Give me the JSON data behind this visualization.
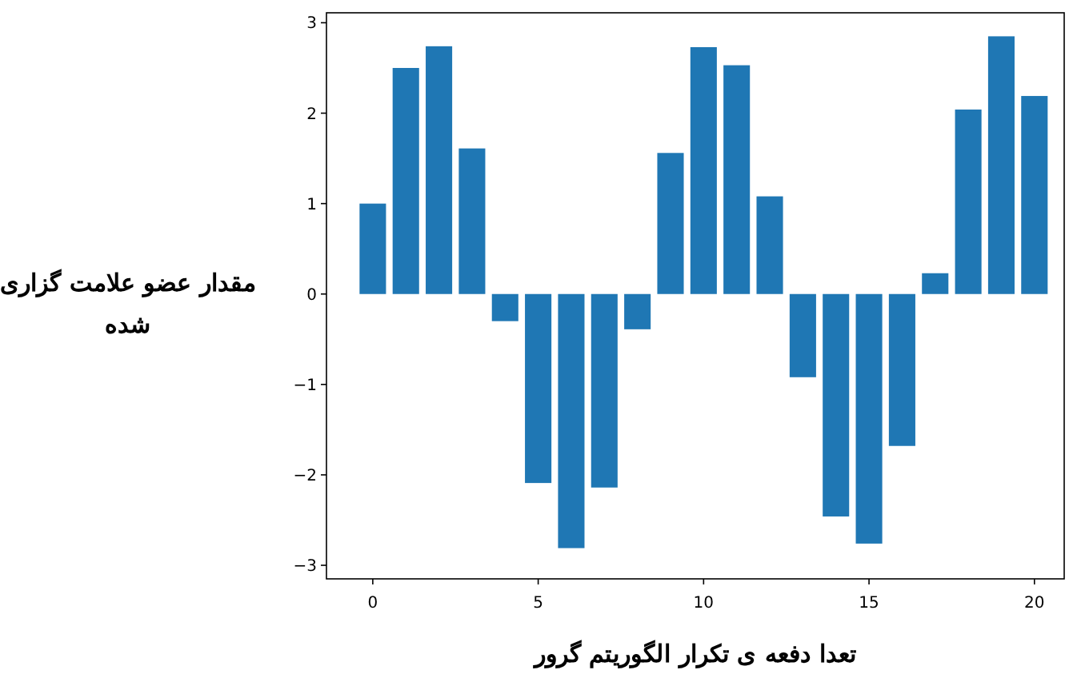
{
  "chart_data": {
    "type": "bar",
    "xlabel": "تعدا دفعه ی تکرار الگوریتم گرور",
    "ylabel": "مقدار عضو علامت گزاری شده",
    "x": [
      0,
      1,
      2,
      3,
      4,
      5,
      6,
      7,
      8,
      9,
      10,
      11,
      12,
      13,
      14,
      15,
      16,
      17,
      18,
      19,
      20
    ],
    "values": [
      1.0,
      2.5,
      2.74,
      1.61,
      -0.3,
      -2.09,
      -2.81,
      -2.14,
      -0.39,
      1.56,
      2.73,
      2.53,
      1.08,
      -0.92,
      -2.46,
      -2.76,
      -1.68,
      0.23,
      2.04,
      2.85,
      2.19
    ],
    "color": "#1f77b4",
    "xlim": [
      -1.4,
      20.9
    ],
    "ylim": [
      -3.15,
      3.11
    ],
    "xticks": [
      0,
      5,
      10,
      15,
      20
    ],
    "yticks": [
      -3,
      -2,
      -1,
      0,
      1,
      2,
      3
    ]
  }
}
